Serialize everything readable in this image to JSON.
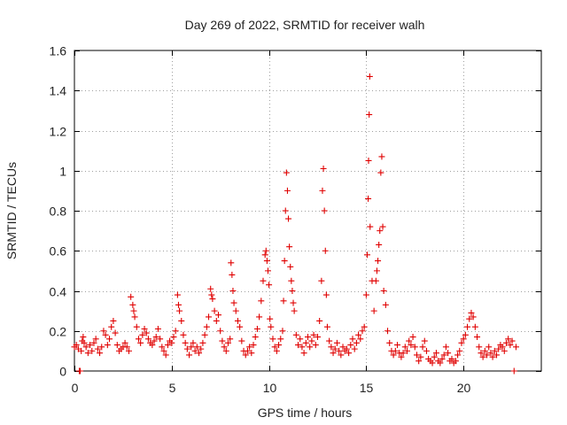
{
  "chart_data": {
    "type": "scatter",
    "title": "Day 269 of 2022, SRMTID for receiver walh",
    "xlabel": "GPS time / hours",
    "ylabel": "SRMTID / TECUs",
    "xlim": [
      0,
      24
    ],
    "ylim": [
      0,
      1.6
    ],
    "xticks": [
      0,
      5,
      10,
      15,
      20
    ],
    "xtick_labels": [
      "0",
      "5",
      "10",
      "15",
      "20"
    ],
    "yticks": [
      0,
      0.2,
      0.4,
      0.6,
      0.8,
      1,
      1.2,
      1.4,
      1.6
    ],
    "ytick_labels": [
      "0",
      "0.2",
      "0.4",
      "0.6",
      "0.8",
      "1",
      "1.2",
      "1.4",
      "1.6"
    ],
    "grid": true,
    "marker": "plus",
    "color": "#e00000",
    "series": [
      {
        "name": "SRMTID",
        "points": [
          [
            0.0,
            0.12
          ],
          [
            0.1,
            0.13
          ],
          [
            0.2,
            0.11
          ],
          [
            0.25,
            0.0
          ],
          [
            0.3,
            0.0
          ],
          [
            0.35,
            0.1
          ],
          [
            0.4,
            0.15
          ],
          [
            0.45,
            0.17
          ],
          [
            0.5,
            0.14
          ],
          [
            0.6,
            0.12
          ],
          [
            0.7,
            0.09
          ],
          [
            0.8,
            0.13
          ],
          [
            0.9,
            0.1
          ],
          [
            1.0,
            0.14
          ],
          [
            1.1,
            0.16
          ],
          [
            1.2,
            0.11
          ],
          [
            1.3,
            0.09
          ],
          [
            1.4,
            0.12
          ],
          [
            1.5,
            0.2
          ],
          [
            1.6,
            0.18
          ],
          [
            1.7,
            0.13
          ],
          [
            1.8,
            0.16
          ],
          [
            1.9,
            0.22
          ],
          [
            2.0,
            0.25
          ],
          [
            2.1,
            0.19
          ],
          [
            2.2,
            0.13
          ],
          [
            2.3,
            0.1
          ],
          [
            2.4,
            0.11
          ],
          [
            2.5,
            0.12
          ],
          [
            2.6,
            0.14
          ],
          [
            2.7,
            0.12
          ],
          [
            2.8,
            0.1
          ],
          [
            2.9,
            0.37
          ],
          [
            3.0,
            0.33
          ],
          [
            3.05,
            0.3
          ],
          [
            3.1,
            0.27
          ],
          [
            3.2,
            0.22
          ],
          [
            3.3,
            0.16
          ],
          [
            3.4,
            0.14
          ],
          [
            3.5,
            0.18
          ],
          [
            3.6,
            0.21
          ],
          [
            3.7,
            0.19
          ],
          [
            3.8,
            0.16
          ],
          [
            3.9,
            0.14
          ],
          [
            4.0,
            0.13
          ],
          [
            4.1,
            0.15
          ],
          [
            4.2,
            0.17
          ],
          [
            4.3,
            0.21
          ],
          [
            4.4,
            0.16
          ],
          [
            4.5,
            0.12
          ],
          [
            4.6,
            0.1
          ],
          [
            4.7,
            0.08
          ],
          [
            4.8,
            0.13
          ],
          [
            4.9,
            0.15
          ],
          [
            5.0,
            0.14
          ],
          [
            5.1,
            0.17
          ],
          [
            5.2,
            0.2
          ],
          [
            5.3,
            0.38
          ],
          [
            5.35,
            0.33
          ],
          [
            5.4,
            0.3
          ],
          [
            5.5,
            0.25
          ],
          [
            5.6,
            0.18
          ],
          [
            5.7,
            0.14
          ],
          [
            5.8,
            0.11
          ],
          [
            5.9,
            0.08
          ],
          [
            6.0,
            0.12
          ],
          [
            6.1,
            0.14
          ],
          [
            6.2,
            0.1
          ],
          [
            6.3,
            0.12
          ],
          [
            6.4,
            0.09
          ],
          [
            6.5,
            0.11
          ],
          [
            6.6,
            0.14
          ],
          [
            6.7,
            0.18
          ],
          [
            6.8,
            0.22
          ],
          [
            6.9,
            0.27
          ],
          [
            7.0,
            0.41
          ],
          [
            7.05,
            0.38
          ],
          [
            7.1,
            0.36
          ],
          [
            7.2,
            0.3
          ],
          [
            7.3,
            0.25
          ],
          [
            7.4,
            0.28
          ],
          [
            7.5,
            0.2
          ],
          [
            7.6,
            0.15
          ],
          [
            7.7,
            0.12
          ],
          [
            7.8,
            0.1
          ],
          [
            7.9,
            0.14
          ],
          [
            8.0,
            0.16
          ],
          [
            8.05,
            0.54
          ],
          [
            8.1,
            0.48
          ],
          [
            8.15,
            0.4
          ],
          [
            8.2,
            0.34
          ],
          [
            8.3,
            0.3
          ],
          [
            8.4,
            0.25
          ],
          [
            8.5,
            0.22
          ],
          [
            8.6,
            0.15
          ],
          [
            8.7,
            0.1
          ],
          [
            8.8,
            0.08
          ],
          [
            8.9,
            0.1
          ],
          [
            9.0,
            0.12
          ],
          [
            9.1,
            0.09
          ],
          [
            9.2,
            0.13
          ],
          [
            9.3,
            0.17
          ],
          [
            9.4,
            0.21
          ],
          [
            9.5,
            0.27
          ],
          [
            9.6,
            0.35
          ],
          [
            9.7,
            0.45
          ],
          [
            9.8,
            0.58
          ],
          [
            9.85,
            0.6
          ],
          [
            9.9,
            0.55
          ],
          [
            9.95,
            0.5
          ],
          [
            10.0,
            0.43
          ],
          [
            10.05,
            0.26
          ],
          [
            10.1,
            0.22
          ],
          [
            10.2,
            0.16
          ],
          [
            10.3,
            0.12
          ],
          [
            10.4,
            0.1
          ],
          [
            10.5,
            0.13
          ],
          [
            10.6,
            0.16
          ],
          [
            10.7,
            0.2
          ],
          [
            10.75,
            0.35
          ],
          [
            10.8,
            0.55
          ],
          [
            10.85,
            0.8
          ],
          [
            10.9,
            0.99
          ],
          [
            10.95,
            0.9
          ],
          [
            11.0,
            0.76
          ],
          [
            11.05,
            0.62
          ],
          [
            11.1,
            0.52
          ],
          [
            11.15,
            0.45
          ],
          [
            11.2,
            0.4
          ],
          [
            11.25,
            0.34
          ],
          [
            11.3,
            0.3
          ],
          [
            11.4,
            0.18
          ],
          [
            11.5,
            0.13
          ],
          [
            11.6,
            0.16
          ],
          [
            11.7,
            0.12
          ],
          [
            11.8,
            0.09
          ],
          [
            11.9,
            0.14
          ],
          [
            12.0,
            0.17
          ],
          [
            12.1,
            0.12
          ],
          [
            12.2,
            0.15
          ],
          [
            12.3,
            0.18
          ],
          [
            12.4,
            0.13
          ],
          [
            12.5,
            0.17
          ],
          [
            12.6,
            0.25
          ],
          [
            12.7,
            0.45
          ],
          [
            12.75,
            0.9
          ],
          [
            12.8,
            1.01
          ],
          [
            12.85,
            0.8
          ],
          [
            12.9,
            0.6
          ],
          [
            12.95,
            0.38
          ],
          [
            13.0,
            0.22
          ],
          [
            13.1,
            0.15
          ],
          [
            13.2,
            0.12
          ],
          [
            13.3,
            0.09
          ],
          [
            13.4,
            0.11
          ],
          [
            13.5,
            0.14
          ],
          [
            13.6,
            0.1
          ],
          [
            13.7,
            0.08
          ],
          [
            13.8,
            0.12
          ],
          [
            13.9,
            0.1
          ],
          [
            14.0,
            0.11
          ],
          [
            14.1,
            0.09
          ],
          [
            14.2,
            0.13
          ],
          [
            14.3,
            0.16
          ],
          [
            14.4,
            0.11
          ],
          [
            14.5,
            0.14
          ],
          [
            14.6,
            0.18
          ],
          [
            14.7,
            0.16
          ],
          [
            14.8,
            0.2
          ],
          [
            14.9,
            0.22
          ],
          [
            15.0,
            0.38
          ],
          [
            15.05,
            0.58
          ],
          [
            15.1,
            0.86
          ],
          [
            15.12,
            1.05
          ],
          [
            15.15,
            1.28
          ],
          [
            15.18,
            1.47
          ],
          [
            15.2,
            0.72
          ],
          [
            15.3,
            0.45
          ],
          [
            15.4,
            0.3
          ],
          [
            15.5,
            0.45
          ],
          [
            15.55,
            0.5
          ],
          [
            15.6,
            0.55
          ],
          [
            15.65,
            0.63
          ],
          [
            15.7,
            0.7
          ],
          [
            15.75,
            0.99
          ],
          [
            15.8,
            1.07
          ],
          [
            15.85,
            0.72
          ],
          [
            15.9,
            0.4
          ],
          [
            16.0,
            0.33
          ],
          [
            16.1,
            0.2
          ],
          [
            16.2,
            0.14
          ],
          [
            16.3,
            0.1
          ],
          [
            16.4,
            0.08
          ],
          [
            16.5,
            0.1
          ],
          [
            16.6,
            0.13
          ],
          [
            16.7,
            0.09
          ],
          [
            16.8,
            0.07
          ],
          [
            16.9,
            0.09
          ],
          [
            17.0,
            0.12
          ],
          [
            17.1,
            0.1
          ],
          [
            17.2,
            0.15
          ],
          [
            17.3,
            0.13
          ],
          [
            17.4,
            0.17
          ],
          [
            17.5,
            0.12
          ],
          [
            17.6,
            0.08
          ],
          [
            17.7,
            0.05
          ],
          [
            17.8,
            0.07
          ],
          [
            17.9,
            0.12
          ],
          [
            18.0,
            0.15
          ],
          [
            18.1,
            0.1
          ],
          [
            18.2,
            0.06
          ],
          [
            18.3,
            0.05
          ],
          [
            18.4,
            0.04
          ],
          [
            18.5,
            0.07
          ],
          [
            18.6,
            0.09
          ],
          [
            18.7,
            0.05
          ],
          [
            18.8,
            0.04
          ],
          [
            18.9,
            0.06
          ],
          [
            19.0,
            0.08
          ],
          [
            19.1,
            0.12
          ],
          [
            19.2,
            0.09
          ],
          [
            19.3,
            0.05
          ],
          [
            19.4,
            0.06
          ],
          [
            19.5,
            0.04
          ],
          [
            19.6,
            0.05
          ],
          [
            19.7,
            0.08
          ],
          [
            19.8,
            0.1
          ],
          [
            19.9,
            0.14
          ],
          [
            20.0,
            0.16
          ],
          [
            20.1,
            0.18
          ],
          [
            20.2,
            0.22
          ],
          [
            20.3,
            0.26
          ],
          [
            20.4,
            0.29
          ],
          [
            20.5,
            0.27
          ],
          [
            20.6,
            0.22
          ],
          [
            20.7,
            0.17
          ],
          [
            20.8,
            0.12
          ],
          [
            20.9,
            0.09
          ],
          [
            21.0,
            0.07
          ],
          [
            21.1,
            0.1
          ],
          [
            21.2,
            0.08
          ],
          [
            21.3,
            0.12
          ],
          [
            21.4,
            0.09
          ],
          [
            21.5,
            0.07
          ],
          [
            21.6,
            0.1
          ],
          [
            21.7,
            0.08
          ],
          [
            21.8,
            0.11
          ],
          [
            21.9,
            0.13
          ],
          [
            22.0,
            0.12
          ],
          [
            22.1,
            0.1
          ],
          [
            22.2,
            0.14
          ],
          [
            22.3,
            0.16
          ],
          [
            22.4,
            0.13
          ],
          [
            22.5,
            0.15
          ],
          [
            22.6,
            0.0
          ],
          [
            22.7,
            0.12
          ]
        ]
      }
    ]
  }
}
